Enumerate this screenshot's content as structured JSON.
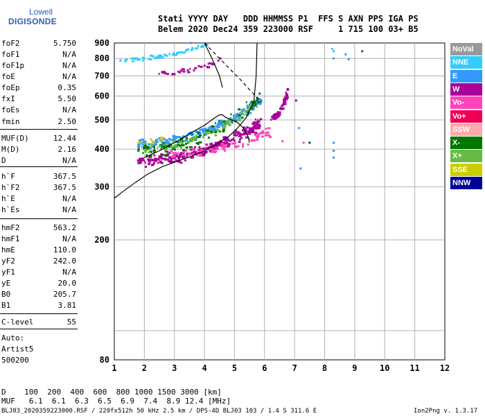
{
  "logo": {
    "line1": "Lowell",
    "line2": "DIGISONDE"
  },
  "header": {
    "line1": "Stati YYYY DAY   DDD HHMMSS P1  FFS S AXN PPS IGA PS",
    "line2": "Belem 2020 Dec24 359 223000 RSF     1 715 100 03+ B5"
  },
  "params": [
    {
      "label": "foF2",
      "value": "5.750"
    },
    {
      "label": "foF1",
      "value": "N/A"
    },
    {
      "label": "foF1p",
      "value": "N/A"
    },
    {
      "label": "foE",
      "value": "N/A"
    },
    {
      "label": "foEp",
      "value": "0.35"
    },
    {
      "label": "fxI",
      "value": "5.50"
    },
    {
      "label": "foEs",
      "value": "N/A"
    },
    {
      "label": "fmin",
      "value": "2.50"
    },
    {
      "label": "MUF(D)",
      "value": "12.44"
    },
    {
      "label": "M(D)",
      "value": "2.16"
    },
    {
      "label": "D",
      "value": "N/A"
    },
    {
      "label": "h`F",
      "value": "367.5"
    },
    {
      "label": "h`F2",
      "value": "367.5"
    },
    {
      "label": "h`E",
      "value": "N/A"
    },
    {
      "label": "h`Es",
      "value": "N/A"
    },
    {
      "label": "hmF2",
      "value": "563.2"
    },
    {
      "label": "hmF1",
      "value": "N/A"
    },
    {
      "label": "hmE",
      "value": "110.0"
    },
    {
      "label": "yF2",
      "value": "242.0"
    },
    {
      "label": "yF1",
      "value": "N/A"
    },
    {
      "label": "yE",
      "value": "20.0"
    },
    {
      "label": "B0",
      "value": "205.7"
    },
    {
      "label": "B1",
      "value": "3.81"
    },
    {
      "label": "C-level",
      "value": "55"
    }
  ],
  "auto": {
    "line1": "Auto:",
    "line2": "Artist5",
    "line3": "500200"
  },
  "legend": [
    {
      "label": "NoVal",
      "color": "#999999"
    },
    {
      "label": "NNE",
      "color": "#33ccff"
    },
    {
      "label": "E",
      "color": "#3399ff"
    },
    {
      "label": "W",
      "color": "#aa0099"
    },
    {
      "label": "Vo-",
      "color": "#ff44bb"
    },
    {
      "label": "Vo+",
      "color": "#ee0055"
    },
    {
      "label": "SSW",
      "color": "#ffaaaa"
    },
    {
      "label": "X-",
      "color": "#007700"
    },
    {
      "label": "X+",
      "color": "#66bb44"
    },
    {
      "label": "SSE",
      "color": "#cccc00"
    },
    {
      "label": "NNW",
      "color": "#000099"
    }
  ],
  "footer": {
    "d_line": "D    100  200  400  600  800 1000 1500 3000 [km]",
    "muf_line": "MUF   6.1  6.1  6.3  6.5  6.9  7.4  8.9 12.4 [MHz]",
    "file_line": "BLJ03_2020359223000.RSF / 220fx512h 50 kHz 2.5 km / DPS-4D BLJ03 103 / 1.4 S 311.6 E",
    "version": "Ion2Png v. 1.3.17"
  },
  "chart_data": {
    "type": "scatter",
    "xlim": [
      1,
      12
    ],
    "ylim": [
      80,
      900
    ],
    "y_scale": "log",
    "x_ticks": [
      1,
      2,
      3,
      4,
      5,
      6,
      7,
      8,
      9,
      10,
      11,
      12
    ],
    "y_ticks": [
      80,
      200,
      300,
      400,
      500,
      600,
      700,
      800,
      900
    ],
    "grid": true,
    "profile_curve": {
      "x": [
        1.0,
        1.3,
        1.7,
        2.1,
        2.6,
        3.1,
        3.6,
        4.0,
        4.4,
        4.8,
        5.1,
        5.4,
        5.65,
        5.72,
        5.75
      ],
      "y": [
        275,
        290,
        310,
        330,
        350,
        365,
        380,
        395,
        415,
        440,
        470,
        510,
        580,
        700,
        900
      ]
    },
    "trace_curve": {
      "x": [
        2.0,
        2.5,
        3.0,
        3.5,
        4.0,
        4.3,
        4.5,
        4.6,
        4.7,
        4.9,
        5.1,
        5.3,
        5.45,
        5.5
      ],
      "y": [
        375,
        395,
        420,
        450,
        480,
        505,
        520,
        520,
        510,
        500,
        490,
        470,
        440,
        420
      ]
    },
    "trace_curve2": {
      "x": [
        4.0,
        4.1,
        4.3,
        4.5,
        4.6
      ],
      "y": [
        900,
        860,
        780,
        700,
        640
      ]
    },
    "dashed_curve": {
      "x": [
        4.0,
        4.4,
        4.8,
        5.2,
        5.5,
        5.7,
        5.9
      ],
      "y": [
        900,
        820,
        745,
        680,
        630,
        600,
        570
      ]
    },
    "clusters": [
      {
        "name": "E",
        "x_range": [
          1.8,
          5.9
        ],
        "y_start": [
          405,
          425
        ],
        "y_end": [
          560,
          600
        ],
        "count": 240,
        "color": "#3399ff"
      },
      {
        "name": "NNE",
        "x_range": [
          1.2,
          4.1
        ],
        "y_start": [
          790,
          800
        ],
        "y_end": [
          880,
          900
        ],
        "count": 60,
        "color": "#33ccff"
      },
      {
        "name": "W",
        "x_range": [
          1.8,
          5.9
        ],
        "y_start": [
          355,
          375
        ],
        "y_end": [
          470,
          510
        ],
        "count": 260,
        "color": "#aa0099"
      },
      {
        "name": "W-upper",
        "x_range": [
          2.4,
          4.6
        ],
        "y_start": [
          705,
          720
        ],
        "y_end": [
          780,
          810
        ],
        "count": 30,
        "color": "#aa0099"
      },
      {
        "name": "W-right",
        "x_range": [
          6.2,
          6.8
        ],
        "y_start": [
          500,
          510
        ],
        "y_end": [
          620,
          650
        ],
        "count": 60,
        "color": "#aa0099"
      },
      {
        "name": "Vo-",
        "x_range": [
          2.8,
          6.2
        ],
        "y_start": [
          380,
          390
        ],
        "y_end": [
          440,
          470
        ],
        "count": 80,
        "color": "#ff44bb"
      },
      {
        "name": "X-",
        "x_range": [
          1.8,
          5.9
        ],
        "y_start": [
          380,
          410
        ],
        "y_end": [
          560,
          620
        ],
        "count": 110,
        "color": "#007700"
      },
      {
        "name": "X+",
        "x_range": [
          2.0,
          5.9
        ],
        "y_start": [
          395,
          415
        ],
        "y_end": [
          560,
          600
        ],
        "count": 70,
        "color": "#66bb44"
      },
      {
        "name": "SSE",
        "x_range": [
          1.8,
          2.6
        ],
        "y_start": [
          410,
          420
        ],
        "y_end": [
          430,
          440
        ],
        "count": 8,
        "color": "#cccc00"
      }
    ],
    "isolated": [
      {
        "x": 8.25,
        "y": 860,
        "color": "#33ccff"
      },
      {
        "x": 8.3,
        "y": 845,
        "color": "#33ccff"
      },
      {
        "x": 8.3,
        "y": 800,
        "color": "#3399ff"
      },
      {
        "x": 8.8,
        "y": 795,
        "color": "#3399ff"
      },
      {
        "x": 8.7,
        "y": 825,
        "color": "#3399ff"
      },
      {
        "x": 8.3,
        "y": 420,
        "color": "#3399ff"
      },
      {
        "x": 8.3,
        "y": 395,
        "color": "#3399ff"
      },
      {
        "x": 8.3,
        "y": 375,
        "color": "#3399ff"
      },
      {
        "x": 7.15,
        "y": 470,
        "color": "#3399ff"
      },
      {
        "x": 7.2,
        "y": 345,
        "color": "#3399ff"
      },
      {
        "x": 7.5,
        "y": 420,
        "color": "#aa0099"
      },
      {
        "x": 7.5,
        "y": 420,
        "color": "#007700"
      },
      {
        "x": 7.05,
        "y": 580,
        "color": "#aa0099"
      },
      {
        "x": 9.25,
        "y": 845,
        "color": "#007700"
      },
      {
        "x": 7.3,
        "y": 420,
        "color": "#ff44bb"
      },
      {
        "x": 6.6,
        "y": 425,
        "color": "#ff44bb"
      },
      {
        "x": 3.55,
        "y": 900,
        "color": "#3399ff"
      }
    ]
  }
}
